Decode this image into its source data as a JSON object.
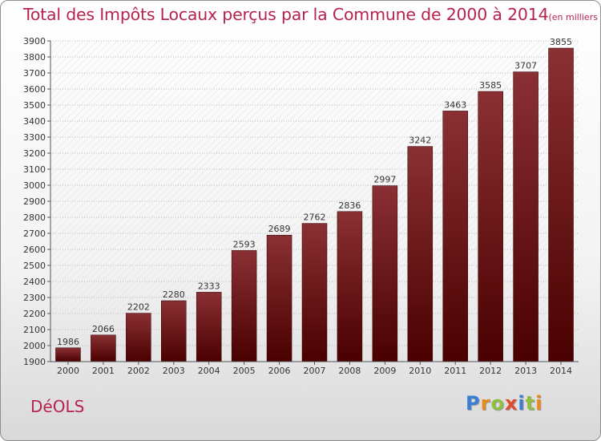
{
  "title": "Total des Impôts Locaux perçus par la Commune de 2000 à 2014",
  "title_unit": "(en milliers d'€)",
  "commune": "DéOLS",
  "logo": {
    "letters": [
      "P",
      "r",
      "o",
      "x",
      "i",
      "t",
      "i"
    ],
    "colors": [
      "#3b7fd4",
      "#e98a1f",
      "#8fc13f",
      "#e14a2f",
      "#3b7fd4",
      "#8fc13f",
      "#e98a1f"
    ]
  },
  "colors": {
    "title": "#b5234e",
    "bar_top": "#8a3034",
    "bar_bottom": "#4a0000"
  },
  "chart_data": {
    "type": "bar",
    "title": "Total des Impôts Locaux perçus par la Commune de 2000 à 2014",
    "ylabel": "en milliers d'€",
    "xlabel": "",
    "categories": [
      "2000",
      "2001",
      "2002",
      "2003",
      "2004",
      "2005",
      "2006",
      "2007",
      "2008",
      "2009",
      "2010",
      "2011",
      "2012",
      "2013",
      "2014"
    ],
    "values": [
      1986,
      2066,
      2202,
      2280,
      2333,
      2593,
      2689,
      2762,
      2836,
      2997,
      3242,
      3463,
      3585,
      3707,
      3855
    ],
    "ylim": [
      1900,
      3900
    ],
    "yticks": [
      "1900",
      "2000",
      "2100",
      "2200",
      "2300",
      "2400",
      "2500",
      "2600",
      "2700",
      "2800",
      "2900",
      "3000",
      "3100",
      "3200",
      "3300",
      "3400",
      "3500",
      "3600",
      "3700",
      "3800",
      "3900"
    ],
    "grid": true,
    "legend": "none"
  }
}
